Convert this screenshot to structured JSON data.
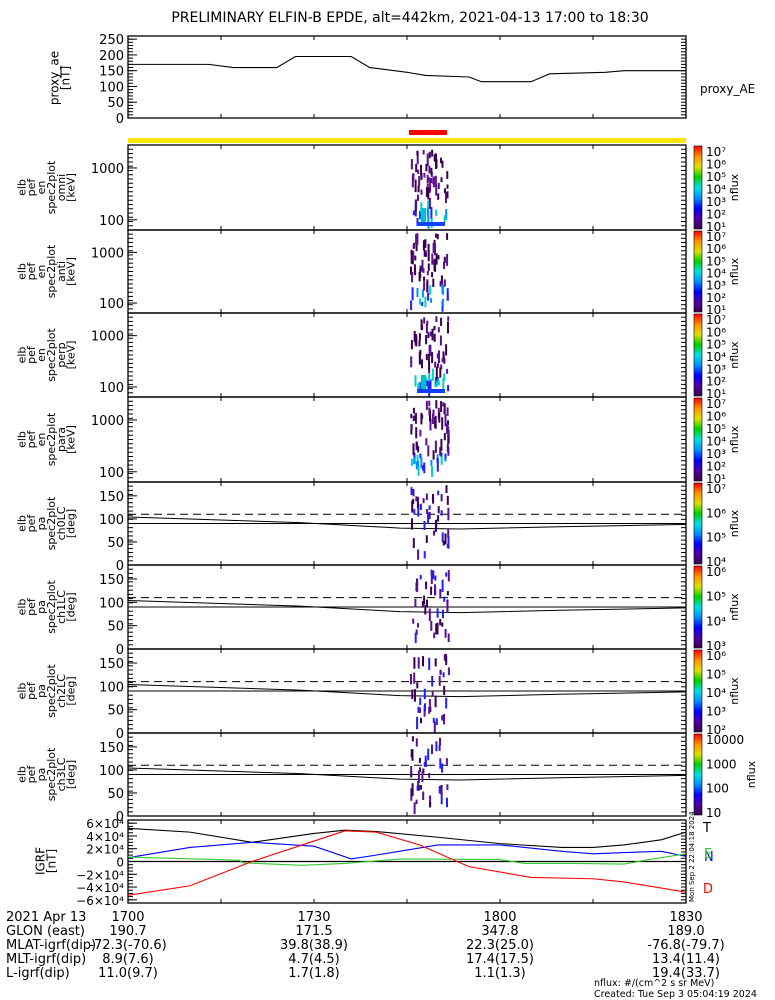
{
  "title": "PRELIMINARY ELFIN-B EPDE, alt=442km, 2021-04-13 17:00 to 18:30",
  "colors": {
    "yellow_bar": "#ffe600",
    "red_bar": "#ff0000",
    "blue": "#0000ff",
    "green": "#33cc33",
    "red": "#ff0000"
  },
  "chart_data": [
    {
      "type": "line",
      "name": "proxy_ae",
      "ylabel_lines": [
        "proxy_ae",
        "[nT]"
      ],
      "legend": "proxy_AE",
      "ylim": [
        0,
        260
      ],
      "yticks": [
        "0",
        "50",
        "100",
        "150",
        "200",
        "250"
      ],
      "xlim": [
        0,
        90
      ],
      "x": [
        0,
        13,
        17,
        24,
        27,
        36,
        39,
        45,
        48,
        55,
        57,
        65,
        68,
        77,
        80,
        90
      ],
      "y": [
        170,
        170,
        160,
        160,
        195,
        195,
        160,
        145,
        135,
        130,
        115,
        115,
        140,
        145,
        150,
        150
      ]
    },
    {
      "type": "heatmap",
      "panels": [
        {
          "ylabel_lines": [
            "elb",
            "pef",
            "en",
            "spec2plot",
            "omni",
            "[keV]"
          ],
          "yticks": [
            "100",
            "1000"
          ],
          "cbar_ticks": [
            "10¹",
            "10²",
            "10³",
            "10⁴",
            "10⁵",
            "10⁶",
            "10⁷"
          ],
          "cbar_label": "nflux"
        },
        {
          "ylabel_lines": [
            "elb",
            "pef",
            "en",
            "spec2plot",
            "anti",
            "[keV]"
          ],
          "yticks": [
            "100",
            "1000"
          ],
          "cbar_ticks": [
            "10¹",
            "10²",
            "10³",
            "10⁴",
            "10⁵",
            "10⁶",
            "10⁷"
          ],
          "cbar_label": "nflux"
        },
        {
          "ylabel_lines": [
            "elb",
            "pef",
            "en",
            "spec2plot",
            "perp",
            "[keV]"
          ],
          "yticks": [
            "100",
            "1000"
          ],
          "cbar_ticks": [
            "10¹",
            "10²",
            "10³",
            "10⁴",
            "10⁵",
            "10⁶",
            "10⁷"
          ],
          "cbar_label": "nflux"
        },
        {
          "ylabel_lines": [
            "elb",
            "pef",
            "en",
            "spec2plot",
            "para",
            "[keV]"
          ],
          "yticks": [
            "100",
            "1000"
          ],
          "cbar_ticks": [
            "10¹",
            "10²",
            "10³",
            "10⁴",
            "10⁵",
            "10⁶",
            "10⁷"
          ],
          "cbar_label": "nflux"
        },
        {
          "ylabel_lines": [
            "elb",
            "pef",
            "pa",
            "spec2plot",
            "ch0LC",
            "[deg]"
          ],
          "yticks": [
            "0",
            "50",
            "100",
            "150"
          ],
          "cbar_ticks": [
            "10⁴",
            "10⁵",
            "10⁶",
            "10⁷"
          ],
          "cbar_label": "nflux"
        },
        {
          "ylabel_lines": [
            "elb",
            "pef",
            "pa",
            "spec2plot",
            "ch1LC",
            "[deg]"
          ],
          "yticks": [
            "0",
            "50",
            "100",
            "150"
          ],
          "cbar_ticks": [
            "10³",
            "10⁴",
            "10⁵",
            "10⁶"
          ],
          "cbar_label": "nflux"
        },
        {
          "ylabel_lines": [
            "elb",
            "pef",
            "pa",
            "spec2plot",
            "ch2LC",
            "[deg]"
          ],
          "yticks": [
            "0",
            "50",
            "100",
            "150"
          ],
          "cbar_ticks": [
            "10²",
            "10³",
            "10⁴",
            "10⁵",
            "10⁶"
          ],
          "cbar_label": "nflux"
        },
        {
          "ylabel_lines": [
            "elb",
            "pef",
            "pa",
            "spec2plot",
            "ch3LC",
            "[deg]"
          ],
          "yticks": [
            "0",
            "50",
            "100",
            "150"
          ],
          "cbar_ticks": [
            "10",
            "100",
            "1000",
            "10000"
          ],
          "cbar_label": "nflux"
        }
      ]
    },
    {
      "type": "line",
      "name": "IGRF",
      "ylabel_lines": [
        "IGRF",
        "[nT]"
      ],
      "ylim": [
        -65000,
        65000
      ],
      "yticks": [
        "−6×10⁴",
        "−4×10⁴",
        "−2×10⁴",
        "0",
        "2×10⁴",
        "4×10⁴",
        "6×10⁴"
      ],
      "xlim": [
        0,
        90
      ],
      "series": [
        {
          "name": "T",
          "color": "#000000",
          "x": [
            0,
            10,
            20,
            30,
            35,
            40,
            50,
            60,
            70,
            75,
            80,
            86,
            90
          ],
          "y": [
            52000,
            46000,
            30000,
            44000,
            49000,
            47000,
            38000,
            28000,
            22000,
            22000,
            26000,
            34000,
            46000
          ]
        },
        {
          "name": "N",
          "color": "#0000ff",
          "x": [
            0,
            10,
            20,
            30,
            36,
            40,
            50,
            60,
            70,
            75,
            80,
            86,
            90
          ],
          "y": [
            6000,
            22000,
            30000,
            24000,
            4000,
            10000,
            26000,
            26000,
            16000,
            12000,
            14000,
            16000,
            8000
          ]
        },
        {
          "name": "E",
          "color": "#33cc33",
          "x": [
            0,
            18,
            18.5,
            28,
            35,
            44,
            60,
            64,
            72,
            80,
            84,
            90
          ],
          "y": [
            7000,
            2000,
            -2000,
            -6000,
            -3000,
            4000,
            3000,
            -3000,
            -3000,
            -4000,
            3000,
            12000
          ]
        },
        {
          "name": "D",
          "color": "#ff0000",
          "x": [
            0,
            10,
            20,
            30,
            35,
            40,
            47,
            55,
            65,
            75,
            80,
            90
          ],
          "y": [
            -53000,
            -38000,
            0,
            32000,
            48000,
            46000,
            26000,
            -8000,
            -25000,
            -27000,
            -32000,
            -48000
          ]
        }
      ]
    }
  ],
  "xaxis": {
    "date": "2021 Apr 13",
    "times": [
      "1700",
      "1730",
      "1800",
      "1830"
    ],
    "rows": [
      {
        "label": "GLON (east)",
        "values": [
          "190.7",
          "171.5",
          "347.8",
          "189.0"
        ]
      },
      {
        "label": "MLAT-igrf(dip)",
        "values": [
          "-72.3(-70.6)",
          "39.8(38.9)",
          "22.3(25.0)",
          "-76.8(-79.7)"
        ]
      },
      {
        "label": "MLT-igrf(dip)",
        "values": [
          "8.9(7.6)",
          "4.7(4.5)",
          "17.4(17.5)",
          "13.4(11.4)"
        ]
      },
      {
        "label": "L-igrf(dip)",
        "values": [
          "11.0(9.7)",
          "1.7(1.8)",
          "1.1(1.3)",
          "19.4(33.7)"
        ]
      }
    ]
  },
  "footer": {
    "units": "nflux: #/(cm^2 s sr MeV)",
    "created": "Created: Tue Sep  3 05:04:19 2024",
    "side_stamp": "Mon Sep  2 22:04:18 2024"
  }
}
